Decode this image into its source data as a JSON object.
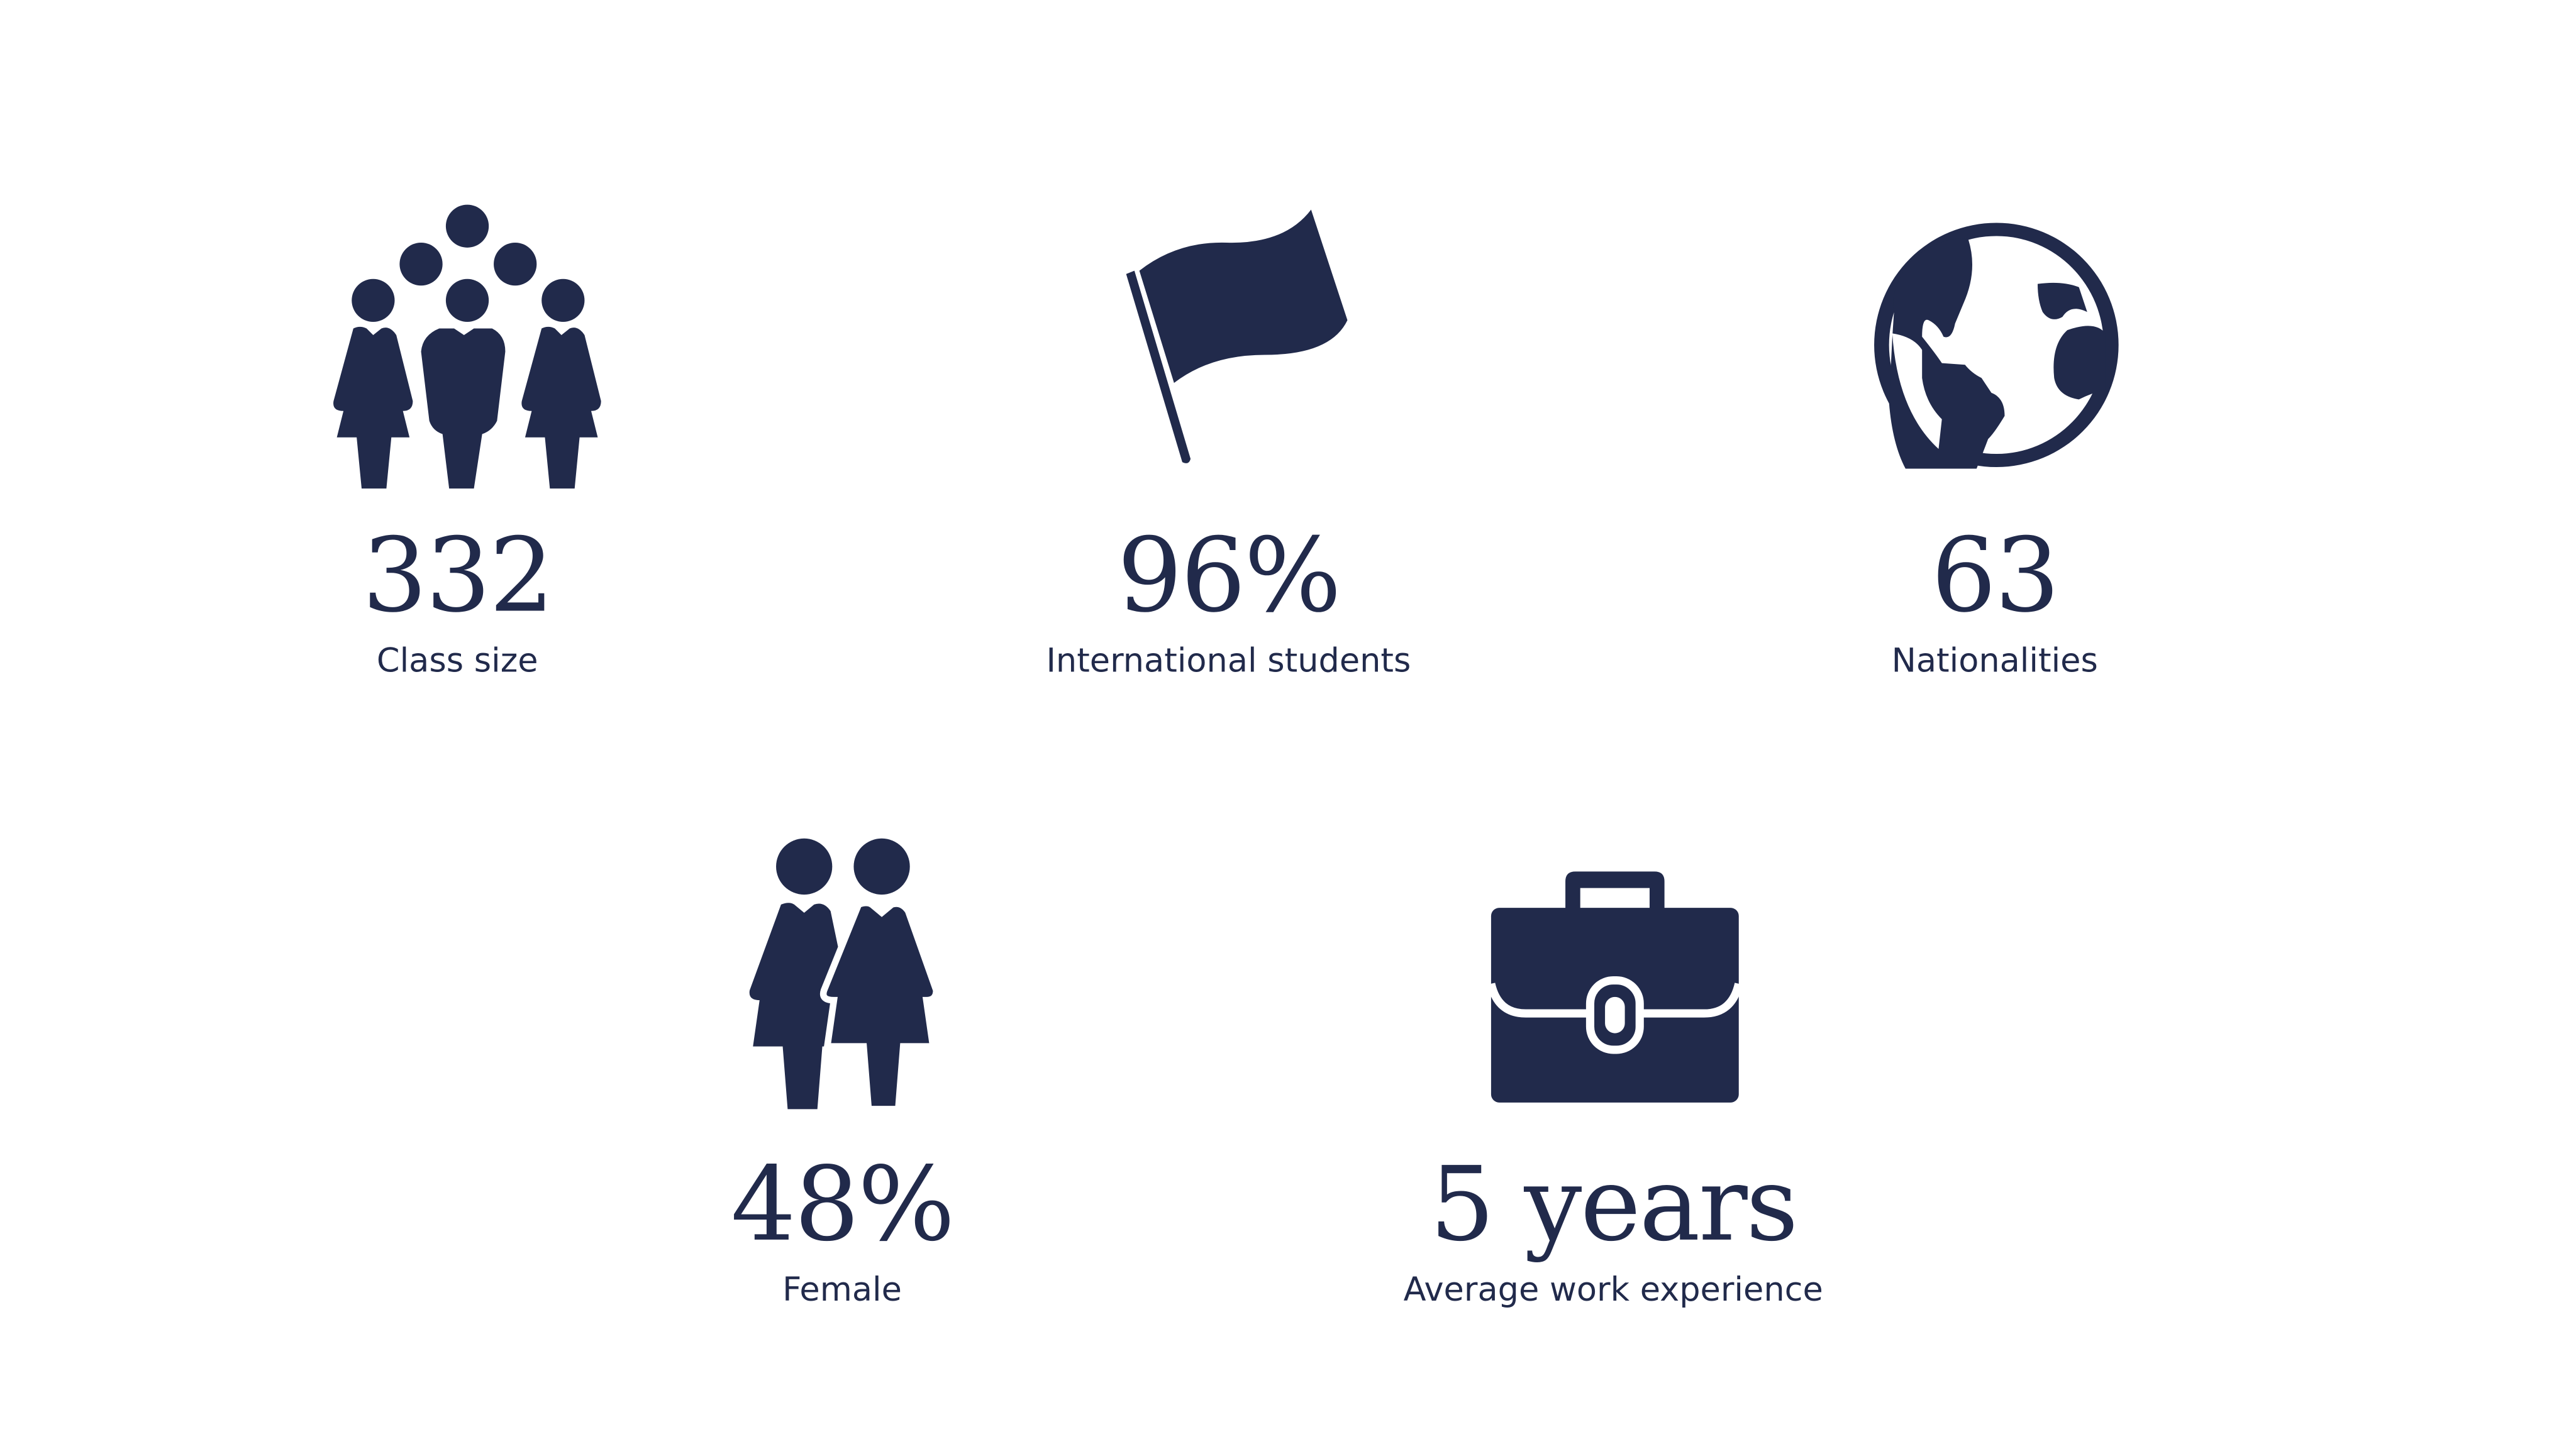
{
  "colors": {
    "primary": "#212a4b",
    "background": "#ffffff"
  },
  "stats": [
    {
      "icon": "group-of-people-icon",
      "value": "332",
      "label": "Class size"
    },
    {
      "icon": "flag-icon",
      "value": "96%",
      "label": "International students"
    },
    {
      "icon": "globe-icon",
      "value": "63",
      "label": "Nationalities"
    },
    {
      "icon": "two-women-icon",
      "value": "48%",
      "label": "Female"
    },
    {
      "icon": "briefcase-icon",
      "value": "5 years",
      "label": "Average work experience"
    }
  ]
}
